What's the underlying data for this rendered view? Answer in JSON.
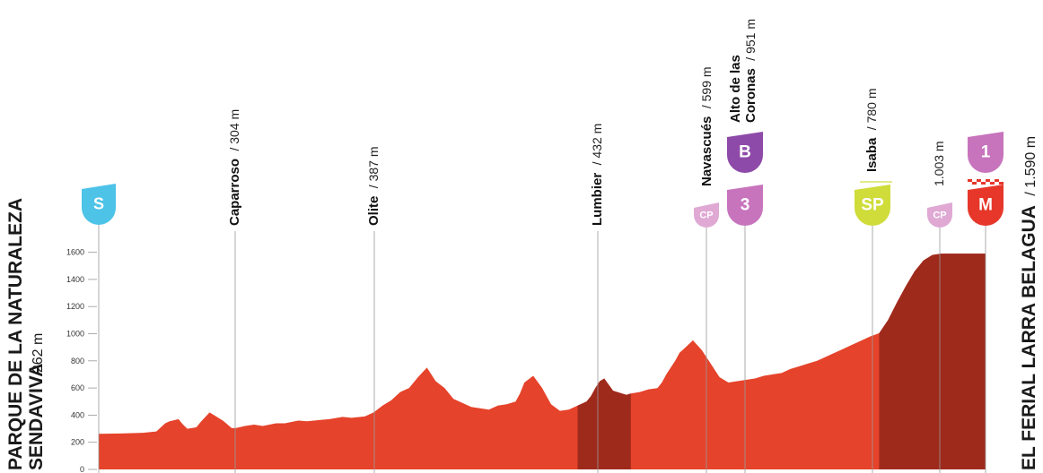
{
  "chart_data": {
    "type": "area",
    "title": "",
    "xlabel": "",
    "ylabel": "",
    "ylim": [
      0,
      1700
    ],
    "yticks": [
      "0",
      "200",
      "400",
      "600",
      "800",
      "1000",
      "1200",
      "1400",
      "1600"
    ],
    "start": {
      "name_line1": "PARQUE DE LA NATURALEZA",
      "name_line2": "SENDAVIVA",
      "altitude": "/ 262 m",
      "badge": "S"
    },
    "finish": {
      "name": "EL FERIAL LARRA BELAGUA",
      "altitude": "/ 1.590 m"
    },
    "waypoints": [
      {
        "name": "Caparroso",
        "altitude": "/ 304 m"
      },
      {
        "name": "Olite",
        "altitude": "/ 387 m"
      },
      {
        "name": "Lumbier",
        "altitude": "/ 432 m"
      },
      {
        "name": "Navascués",
        "altitude": "/ 599 m"
      },
      {
        "name_line1": "Alto de las",
        "name_line2": "Coronas",
        "altitude": "/ 951 m"
      },
      {
        "name": "Isaba",
        "altitude": "/ 780 m"
      },
      {
        "name": "",
        "altitude": "1.003 m"
      }
    ],
    "badges": [
      {
        "label": "S",
        "color": "#4dc3e8",
        "kind": "start"
      },
      {
        "label": "CP",
        "color": "#dfa9d4",
        "kind": "checkpoint"
      },
      {
        "label": "B",
        "color": "#8e4aa8",
        "kind": "bonus"
      },
      {
        "label": "3",
        "color": "#c774bd",
        "kind": "climb"
      },
      {
        "label": "SP",
        "color": "#cfdc3a",
        "kind": "sprint"
      },
      {
        "label": "CP",
        "color": "#dfa9d4",
        "kind": "checkpoint"
      },
      {
        "label": "1",
        "color": "#c774bd",
        "kind": "climb"
      },
      {
        "label": "M",
        "color": "#e6372a",
        "kind": "finish"
      }
    ],
    "profile": {
      "x_km": [
        0,
        5,
        10,
        13,
        15,
        16,
        18,
        19,
        20,
        22,
        23,
        25,
        26,
        28,
        30,
        31,
        33,
        35,
        37,
        40,
        42,
        45,
        47,
        50,
        52,
        55,
        57,
        60,
        62,
        64,
        66,
        68,
        70,
        72,
        74,
        75,
        76,
        78,
        80,
        82,
        84,
        86,
        88,
        90,
        92,
        94,
        95,
        96,
        98,
        100,
        102,
        104,
        106,
        108,
        110,
        111,
        112,
        113,
        114,
        116,
        118,
        119,
        120,
        122,
        124,
        126,
        127,
        128,
        130,
        131,
        132,
        134,
        136,
        138,
        140,
        142,
        144,
        146,
        148,
        150,
        152,
        154,
        156,
        158,
        160,
        162,
        164,
        166,
        168,
        170,
        172,
        174,
        176,
        178,
        180,
        182,
        184,
        186,
        188,
        190,
        192,
        194,
        196,
        198,
        199,
        200
      ],
      "elevation": [
        262,
        265,
        270,
        280,
        340,
        355,
        370,
        330,
        300,
        310,
        350,
        420,
        400,
        360,
        304,
        305,
        320,
        330,
        320,
        340,
        340,
        360,
        355,
        365,
        370,
        387,
        380,
        390,
        420,
        470,
        510,
        570,
        600,
        680,
        750,
        700,
        650,
        600,
        520,
        490,
        460,
        450,
        440,
        470,
        480,
        500,
        560,
        640,
        690,
        600,
        480,
        432,
        440,
        470,
        500,
        540,
        600,
        650,
        670,
        580,
        560,
        550,
        560,
        570,
        590,
        599,
        640,
        700,
        800,
        860,
        890,
        951,
        880,
        780,
        680,
        640,
        650,
        660,
        670,
        690,
        700,
        710,
        740,
        760,
        780,
        800,
        830,
        860,
        890,
        920,
        950,
        980,
        1003,
        1100,
        1230,
        1350,
        1460,
        1540,
        1580,
        1590,
        1590,
        1590,
        1590,
        1590,
        1590,
        1590
      ],
      "dark_segments": [
        [
          108,
          120
        ],
        [
          176,
          200
        ]
      ],
      "fill_color": "#e5432b",
      "dark_color": "#9e2a1c"
    }
  }
}
